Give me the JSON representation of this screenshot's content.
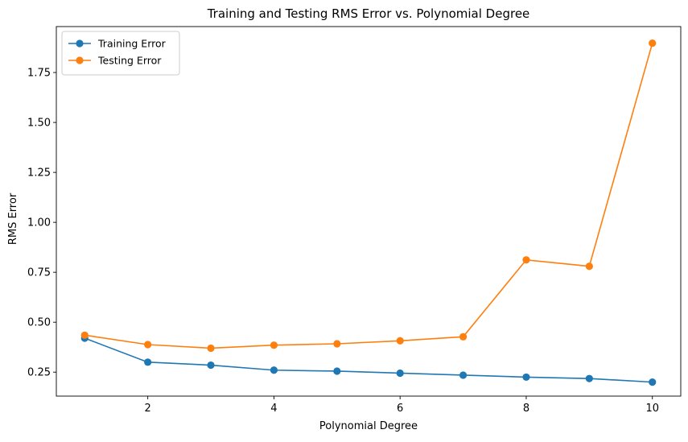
{
  "chart_data": {
    "type": "line",
    "title": "Training and Testing RMS Error vs. Polynomial Degree",
    "xlabel": "Polynomial Degree",
    "ylabel": "RMS Error",
    "x": [
      1,
      2,
      3,
      4,
      5,
      6,
      7,
      8,
      9,
      10
    ],
    "xlim": [
      0.55,
      10.45
    ],
    "ylim": [
      0.13,
      1.98
    ],
    "xticks": [
      2,
      4,
      6,
      8,
      10
    ],
    "xtick_labels": [
      "2",
      "4",
      "6",
      "8",
      "10"
    ],
    "yticks": [
      0.25,
      0.5,
      0.75,
      1.0,
      1.25,
      1.5,
      1.75
    ],
    "ytick_labels": [
      "0.25",
      "0.50",
      "0.75",
      "1.00",
      "1.25",
      "1.50",
      "1.75"
    ],
    "grid": false,
    "legend_position": "top-left",
    "series": [
      {
        "name": "Training Error",
        "color": "#1f77b4",
        "marker": "circle",
        "values": [
          0.42,
          0.3,
          0.285,
          0.26,
          0.255,
          0.245,
          0.235,
          0.225,
          0.218,
          0.2
        ]
      },
      {
        "name": "Testing Error",
        "color": "#ff7f0e",
        "marker": "circle",
        "values": [
          0.435,
          0.388,
          0.37,
          0.385,
          0.392,
          0.407,
          0.427,
          0.812,
          0.78,
          1.897
        ]
      }
    ]
  }
}
